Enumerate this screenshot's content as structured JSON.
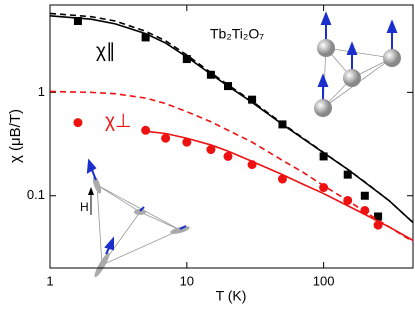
{
  "chart_data": {
    "type": "scatter",
    "title": "Tb₂Ti₂O₇",
    "x_label": "T (K)",
    "y_label": "χ (μB/T)",
    "xscale": "log",
    "yscale": "log",
    "xlim": [
      1,
      450
    ],
    "ylim": [
      0.02,
      7
    ],
    "xticks": [
      1,
      10,
      100
    ],
    "yticks": [
      0.1,
      1
    ],
    "series": [
      {
        "name": "χ∥",
        "color": "#000000",
        "marker": "square",
        "x": [
          1.6,
          5,
          10,
          15,
          20,
          30,
          50,
          100,
          150,
          200,
          250
        ],
        "values": [
          4.9,
          3.4,
          2.1,
          1.48,
          1.15,
          0.85,
          0.49,
          0.24,
          0.16,
          0.1,
          0.063
        ]
      },
      {
        "name": "χ⊥",
        "color": "#ee1111",
        "marker": "circle",
        "x": [
          1.6,
          5,
          7,
          10,
          15,
          20,
          30,
          50,
          100,
          150,
          200,
          250
        ],
        "values": [
          0.51,
          0.43,
          0.36,
          0.33,
          0.28,
          0.24,
          0.2,
          0.145,
          0.12,
          0.09,
          0.072,
          0.052
        ]
      },
      {
        "color": "#000000",
        "linestyle": "solid",
        "x": [
          1,
          2,
          3,
          5,
          7,
          10,
          15,
          20,
          30,
          50,
          70,
          100,
          150,
          200,
          300,
          450
        ],
        "values": [
          5.5,
          5.1,
          4.6,
          3.7,
          3.0,
          2.2,
          1.5,
          1.15,
          0.8,
          0.49,
          0.36,
          0.26,
          0.18,
          0.135,
          0.09,
          0.055
        ]
      },
      {
        "color": "#000000",
        "linestyle": "dashed",
        "x": [
          1,
          2,
          3,
          5,
          7,
          10,
          15,
          20,
          30,
          50,
          70,
          100,
          150,
          200,
          300,
          450
        ],
        "values": [
          5.8,
          5.4,
          4.9,
          3.9,
          3.15,
          2.3,
          1.55,
          1.18,
          0.82,
          0.5,
          0.365,
          0.262,
          0.18,
          0.136,
          0.09,
          0.055
        ]
      },
      {
        "color": "#ee1111",
        "linestyle": "solid",
        "x": [
          5,
          7,
          10,
          15,
          20,
          30,
          50,
          70,
          100,
          150,
          200,
          300,
          450
        ],
        "values": [
          0.42,
          0.4,
          0.36,
          0.31,
          0.27,
          0.215,
          0.16,
          0.13,
          0.105,
          0.08,
          0.066,
          0.05,
          0.037
        ]
      },
      {
        "color": "#ee1111",
        "linestyle": "dashed",
        "x": [
          1,
          2,
          3,
          5,
          7,
          10,
          15,
          20,
          30,
          50,
          70,
          100,
          150,
          200,
          300,
          450
        ],
        "values": [
          1.02,
          1.0,
          0.97,
          0.88,
          0.78,
          0.65,
          0.52,
          0.43,
          0.33,
          0.22,
          0.17,
          0.125,
          0.09,
          0.07,
          0.05,
          0.036
        ]
      }
    ]
  }
}
